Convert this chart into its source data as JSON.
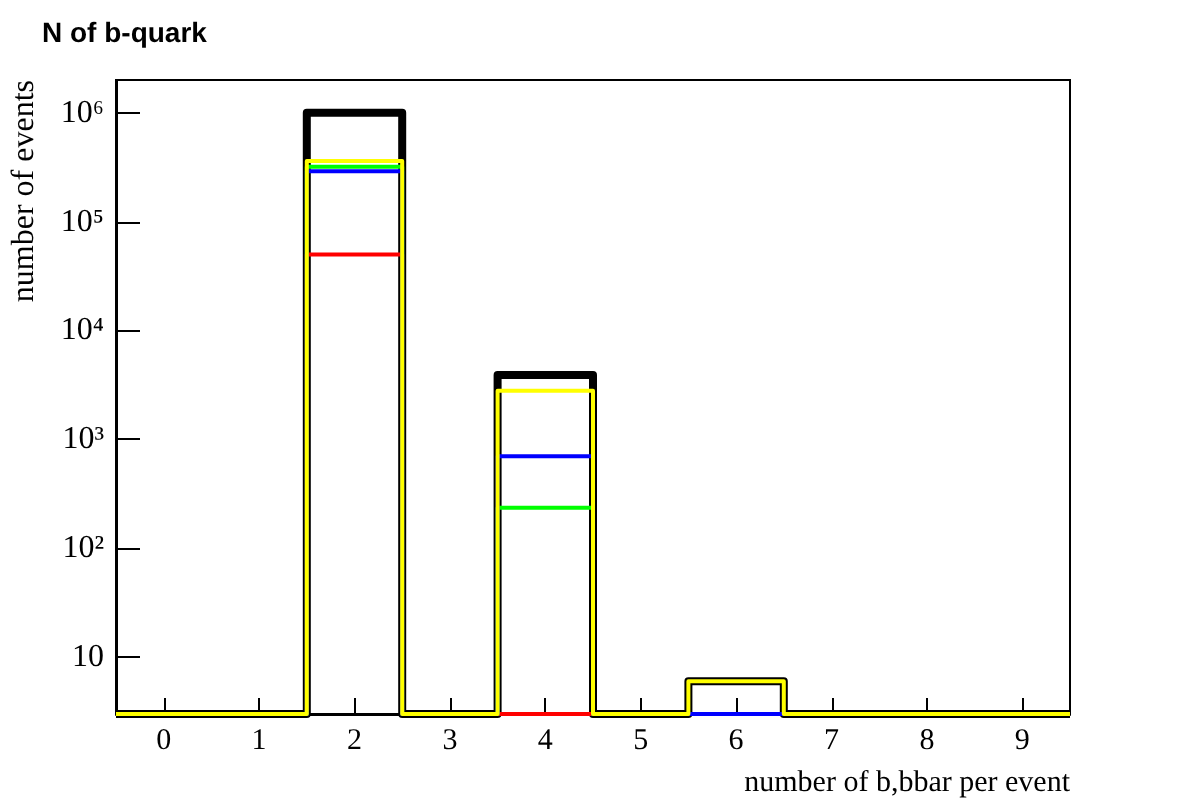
{
  "chart_data": {
    "type": "histogram",
    "title": "N of b-quark",
    "xlabel": "number of b,bbar per event",
    "ylabel": "number of events",
    "bins": [
      -0.5,
      0.5,
      1.5,
      2.5,
      3.5,
      4.5,
      5.5,
      6.5,
      7.5,
      8.5,
      9.5
    ],
    "series": [
      {
        "color": "#000000",
        "values": [
          null,
          null,
          1000000,
          null,
          3900,
          null,
          6,
          null,
          null,
          null
        ]
      },
      {
        "color": "#ff0000",
        "values": [
          null,
          null,
          50000,
          null,
          null,
          null,
          null,
          null,
          null,
          null
        ]
      },
      {
        "color": "#00ff00",
        "values": [
          null,
          null,
          320000,
          null,
          235,
          null,
          null,
          null,
          null,
          null
        ]
      },
      {
        "color": "#0000ff",
        "values": [
          null,
          null,
          290000,
          null,
          700,
          null,
          null,
          null,
          null,
          null
        ]
      },
      {
        "color": "#ffff00",
        "values": [
          null,
          null,
          360000,
          null,
          2800,
          null,
          6,
          null,
          null,
          null
        ]
      }
    ],
    "log": "y",
    "xlim": [
      -0.5,
      9.5
    ],
    "xticks": [
      0,
      1,
      2,
      3,
      4,
      5,
      6,
      7,
      8,
      9
    ],
    "ylim": [
      3,
      2000000
    ],
    "yticks": [
      10,
      {
        "value": 100,
        "label": "10²"
      },
      {
        "value": 1000,
        "label": "10³"
      },
      {
        "value": 10000,
        "label": "10⁴"
      },
      {
        "value": 100000,
        "label": "10⁵"
      },
      {
        "value": 1000000,
        "label": "10⁶"
      }
    ],
    "grid": false
  }
}
